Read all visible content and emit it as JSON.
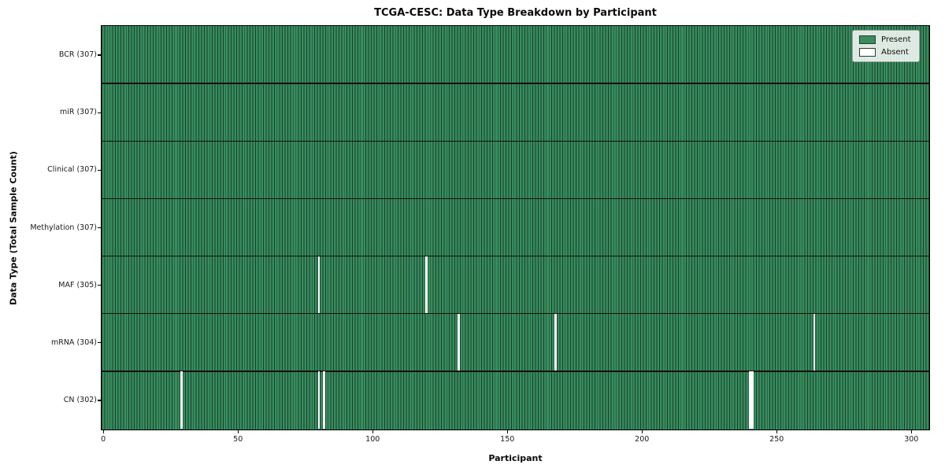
{
  "chart_data": {
    "type": "heatmap",
    "title": "TCGA-CESC: Data Type Breakdown by Participant",
    "xlabel": "Participant",
    "ylabel": "Data Type (Total Sample Count)",
    "n_participants": 307,
    "x_ticks": [
      0,
      50,
      100,
      150,
      200,
      250,
      300
    ],
    "rows": [
      {
        "name": "bcr",
        "label": "BCR (307)",
        "total": 307,
        "absent_participants": []
      },
      {
        "name": "mir",
        "label": "miR (307)",
        "total": 307,
        "absent_participants": []
      },
      {
        "name": "clinical",
        "label": "Clinical (307)",
        "total": 307,
        "absent_participants": []
      },
      {
        "name": "methylation",
        "label": "Methylation (307)",
        "total": 307,
        "absent_participants": []
      },
      {
        "name": "maf",
        "label": "MAF (305)",
        "total": 305,
        "absent_participants": [
          80,
          120
        ]
      },
      {
        "name": "mrna",
        "label": "mRNA (304)",
        "total": 304,
        "absent_participants": [
          132,
          168,
          264
        ]
      },
      {
        "name": "cn",
        "label": "CN (302)",
        "total": 302,
        "absent_participants": [
          29,
          80,
          82,
          240,
          241
        ]
      }
    ],
    "legend": [
      {
        "label": "Present",
        "color": "#388C5E"
      },
      {
        "label": "Absent",
        "color": "#FFFFFF"
      }
    ],
    "colors": {
      "present": "#388C5E",
      "bar_edge": "#17402A",
      "absent": "#FFFFFF",
      "row_divider": "#101010",
      "spine": "#000000"
    },
    "legend_position": "upper right",
    "grid": false
  }
}
